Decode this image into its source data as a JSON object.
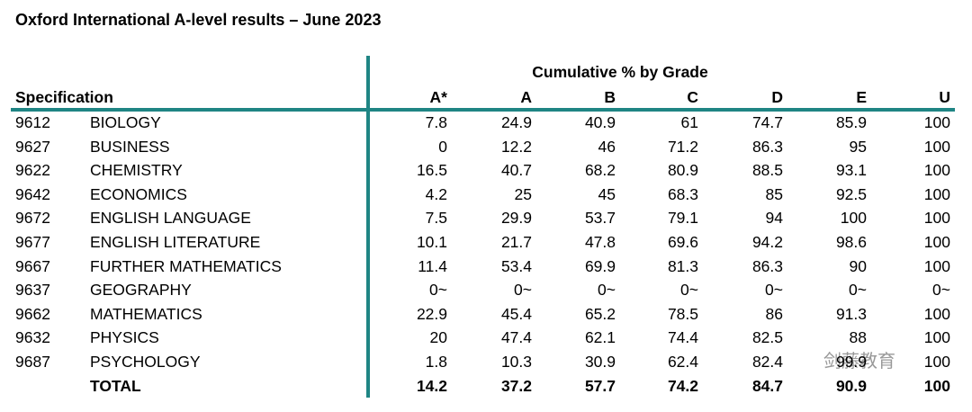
{
  "title": "Oxford International A-level results – June 2023",
  "header": {
    "group": "Cumulative % by Grade",
    "specification": "Specification",
    "grades": [
      "A*",
      "A",
      "B",
      "C",
      "D",
      "E",
      "U"
    ]
  },
  "table": {
    "rows": [
      [
        "9612",
        "BIOLOGY",
        7.8,
        24.9,
        40.9,
        61,
        74.7,
        85.9,
        100
      ],
      [
        "9627",
        "BUSINESS",
        0,
        12.2,
        46,
        71.2,
        86.3,
        95,
        100
      ],
      [
        "9622",
        "CHEMISTRY",
        16.5,
        40.7,
        68.2,
        80.9,
        88.5,
        93.1,
        100
      ],
      [
        "9642",
        "ECONOMICS",
        4.2,
        25,
        45,
        68.3,
        85,
        92.5,
        100
      ],
      [
        "9672",
        "ENGLISH LANGUAGE",
        7.5,
        29.9,
        53.7,
        79.1,
        94,
        100,
        100
      ],
      [
        "9677",
        "ENGLISH LITERATURE",
        10.1,
        21.7,
        47.8,
        69.6,
        94.2,
        98.6,
        100
      ],
      [
        "9667",
        "FURTHER MATHEMATICS",
        11.4,
        53.4,
        69.9,
        81.3,
        86.3,
        90,
        100
      ],
      [
        "9637",
        "GEOGRAPHY",
        "0~",
        "0~",
        "0~",
        "0~",
        "0~",
        "0~",
        "0~"
      ],
      [
        "9662",
        "MATHEMATICS",
        22.9,
        45.4,
        65.2,
        78.5,
        86,
        91.3,
        100
      ],
      [
        "9632",
        "PHYSICS",
        20,
        47.4,
        62.1,
        74.4,
        82.5,
        88,
        100
      ],
      [
        "9687",
        "PSYCHOLOGY",
        1.8,
        10.3,
        30.9,
        62.4,
        82.4,
        99.9,
        100
      ]
    ],
    "total": {
      "label": "TOTAL",
      "values": [
        14.2,
        37.2,
        57.7,
        74.2,
        84.7,
        90.9,
        100
      ]
    }
  },
  "watermark": "剑藤教育"
}
